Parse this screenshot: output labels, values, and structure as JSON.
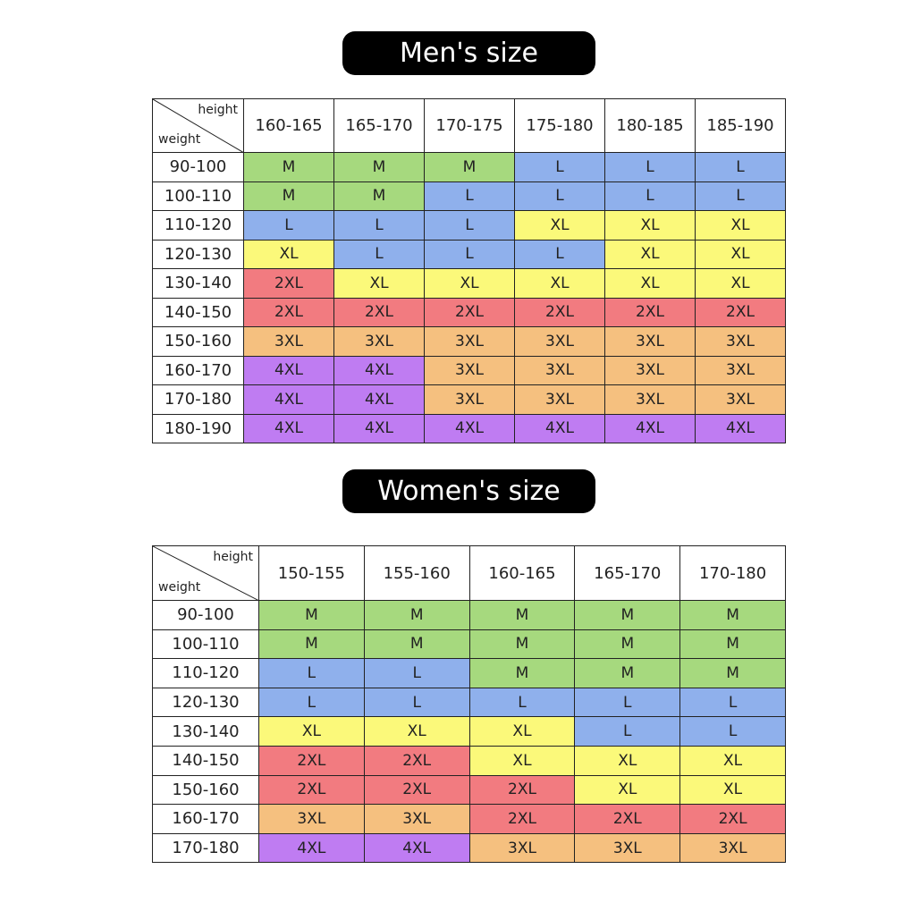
{
  "size_colors": {
    "M": "#a6d97e",
    "L": "#8fb0ec",
    "XL": "#fbf97a",
    "2XL": "#f27b80",
    "3XL": "#f5c07f",
    "4XL": "#bf7cf2"
  },
  "tables": [
    {
      "title": "Men's size",
      "corner_top": "height",
      "corner_bottom": "weight",
      "columns": [
        "160-165",
        "165-170",
        "170-175",
        "175-180",
        "180-185",
        "185-190"
      ],
      "rows": [
        {
          "label": "90-100",
          "cells": [
            "M",
            "M",
            "M",
            "L",
            "L",
            "L"
          ]
        },
        {
          "label": "100-110",
          "cells": [
            "M",
            "M",
            "L",
            "L",
            "L",
            "L"
          ]
        },
        {
          "label": "110-120",
          "cells": [
            "L",
            "L",
            "L",
            "XL",
            "XL",
            "XL"
          ]
        },
        {
          "label": "120-130",
          "cells": [
            "XL",
            "L",
            "L",
            "L",
            "XL",
            "XL"
          ]
        },
        {
          "label": "130-140",
          "cells": [
            "2XL",
            "XL",
            "XL",
            "XL",
            "XL",
            "XL"
          ]
        },
        {
          "label": "140-150",
          "cells": [
            "2XL",
            "2XL",
            "2XL",
            "2XL",
            "2XL",
            "2XL"
          ]
        },
        {
          "label": "150-160",
          "cells": [
            "3XL",
            "3XL",
            "3XL",
            "3XL",
            "3XL",
            "3XL"
          ]
        },
        {
          "label": "160-170",
          "cells": [
            "4XL",
            "4XL",
            "3XL",
            "3XL",
            "3XL",
            "3XL"
          ]
        },
        {
          "label": "170-180",
          "cells": [
            "4XL",
            "4XL",
            "3XL",
            "3XL",
            "3XL",
            "3XL"
          ]
        },
        {
          "label": "180-190",
          "cells": [
            "4XL",
            "4XL",
            "4XL",
            "4XL",
            "4XL",
            "4XL"
          ]
        }
      ]
    },
    {
      "title": "Women's size",
      "corner_top": "height",
      "corner_bottom": "weight",
      "columns": [
        "150-155",
        "155-160",
        "160-165",
        "165-170",
        "170-180"
      ],
      "rows": [
        {
          "label": "90-100",
          "cells": [
            "M",
            "M",
            "M",
            "M",
            "M"
          ]
        },
        {
          "label": "100-110",
          "cells": [
            "M",
            "M",
            "M",
            "M",
            "M"
          ]
        },
        {
          "label": "110-120",
          "cells": [
            "L",
            "L",
            "M",
            "M",
            "M"
          ]
        },
        {
          "label": "120-130",
          "cells": [
            "L",
            "L",
            "L",
            "L",
            "L"
          ]
        },
        {
          "label": "130-140",
          "cells": [
            "XL",
            "XL",
            "XL",
            "L",
            "L"
          ]
        },
        {
          "label": "140-150",
          "cells": [
            "2XL",
            "2XL",
            "XL",
            "XL",
            "XL"
          ]
        },
        {
          "label": "150-160",
          "cells": [
            "2XL",
            "2XL",
            "2XL",
            "XL",
            "XL"
          ]
        },
        {
          "label": "160-170",
          "cells": [
            "3XL",
            "3XL",
            "2XL",
            "2XL",
            "2XL"
          ]
        },
        {
          "label": "170-180",
          "cells": [
            "4XL",
            "4XL",
            "3XL",
            "3XL",
            "3XL"
          ]
        }
      ]
    }
  ]
}
